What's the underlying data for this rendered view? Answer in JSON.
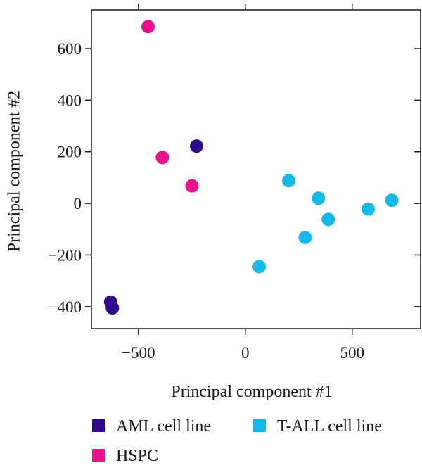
{
  "chart_data": {
    "type": "scatter",
    "title": "",
    "xlabel": "Principal component #1",
    "ylabel": "Principal component #2",
    "xlim": [
      -720,
      820
    ],
    "ylim": [
      -485,
      750
    ],
    "xticks": [
      -500,
      0,
      500
    ],
    "xtick_labels": [
      "−500",
      "0",
      "500"
    ],
    "yticks": [
      -400,
      -200,
      0,
      200,
      400,
      600
    ],
    "ytick_labels": [
      "−400",
      "−200",
      "0",
      "200",
      "400",
      "600"
    ],
    "grid": false,
    "legend_position": "bottom",
    "series": [
      {
        "name": "AML cell line",
        "color": "#2e0a8a",
        "points": [
          [
            -228,
            222
          ],
          [
            -630,
            -382
          ],
          [
            -622,
            -405
          ]
        ]
      },
      {
        "name": "HSPC",
        "color": "#e8128c",
        "points": [
          [
            -455,
            685
          ],
          [
            -388,
            178
          ],
          [
            -250,
            68
          ]
        ]
      },
      {
        "name": "T-ALL cell line",
        "color": "#16b8e8",
        "points": [
          [
            203,
            88
          ],
          [
            342,
            20
          ],
          [
            388,
            -62
          ],
          [
            280,
            -132
          ],
          [
            65,
            -245
          ],
          [
            575,
            -22
          ],
          [
            685,
            12
          ]
        ]
      }
    ]
  }
}
